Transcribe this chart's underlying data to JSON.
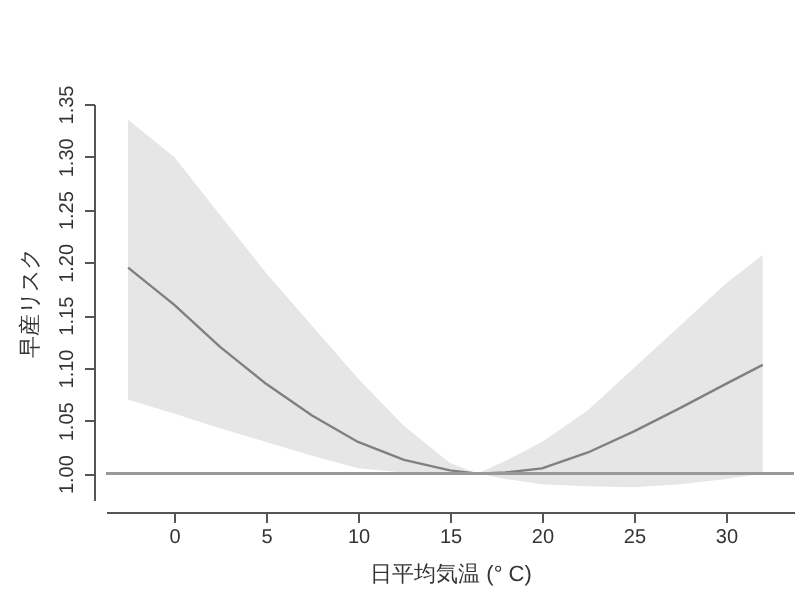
{
  "chart_data": {
    "type": "line",
    "xlabel": "日平均気温 (° C)",
    "ylabel": "早産リスク",
    "x": [
      -2.5,
      0,
      2.5,
      5,
      7.5,
      10,
      12.5,
      15,
      16.5,
      18,
      20,
      22.5,
      25,
      27.5,
      30,
      32
    ],
    "series": [
      {
        "color": "#808080",
        "values": [
          1.195,
          1.16,
          1.12,
          1.085,
          1.055,
          1.03,
          1.013,
          1.003,
          1.0,
          1.001,
          1.005,
          1.02,
          1.04,
          1.062,
          1.085,
          1.103
        ],
        "lower": [
          1.07,
          1.057,
          1.043,
          1.03,
          1.017,
          1.005,
          1.001,
          1.0,
          1.0,
          0.995,
          0.99,
          0.988,
          0.987,
          0.99,
          0.995,
          1.0
        ],
        "upper": [
          1.335,
          1.3,
          1.245,
          1.19,
          1.14,
          1.09,
          1.045,
          1.01,
          1.0,
          1.012,
          1.03,
          1.06,
          1.1,
          1.14,
          1.18,
          1.207
        ]
      }
    ],
    "xlim": [
      -3.7,
      33.7
    ],
    "xticks": [
      0,
      5,
      10,
      15,
      20,
      25,
      30
    ],
    "ylim": [
      0.975,
      1.35
    ],
    "yticks": [
      {
        "value": 1.0,
        "label": "1.00"
      },
      1.05,
      {
        "value": 1.1,
        "label": "1.10"
      },
      1.15,
      {
        "value": 1.2,
        "label": "1.20"
      },
      1.25,
      {
        "value": 1.3,
        "label": "1.30"
      },
      1.35
    ],
    "ref_lines": [
      {
        "axis": "y",
        "value": 1.0,
        "color": "#999999"
      }
    ],
    "grid": false
  }
}
